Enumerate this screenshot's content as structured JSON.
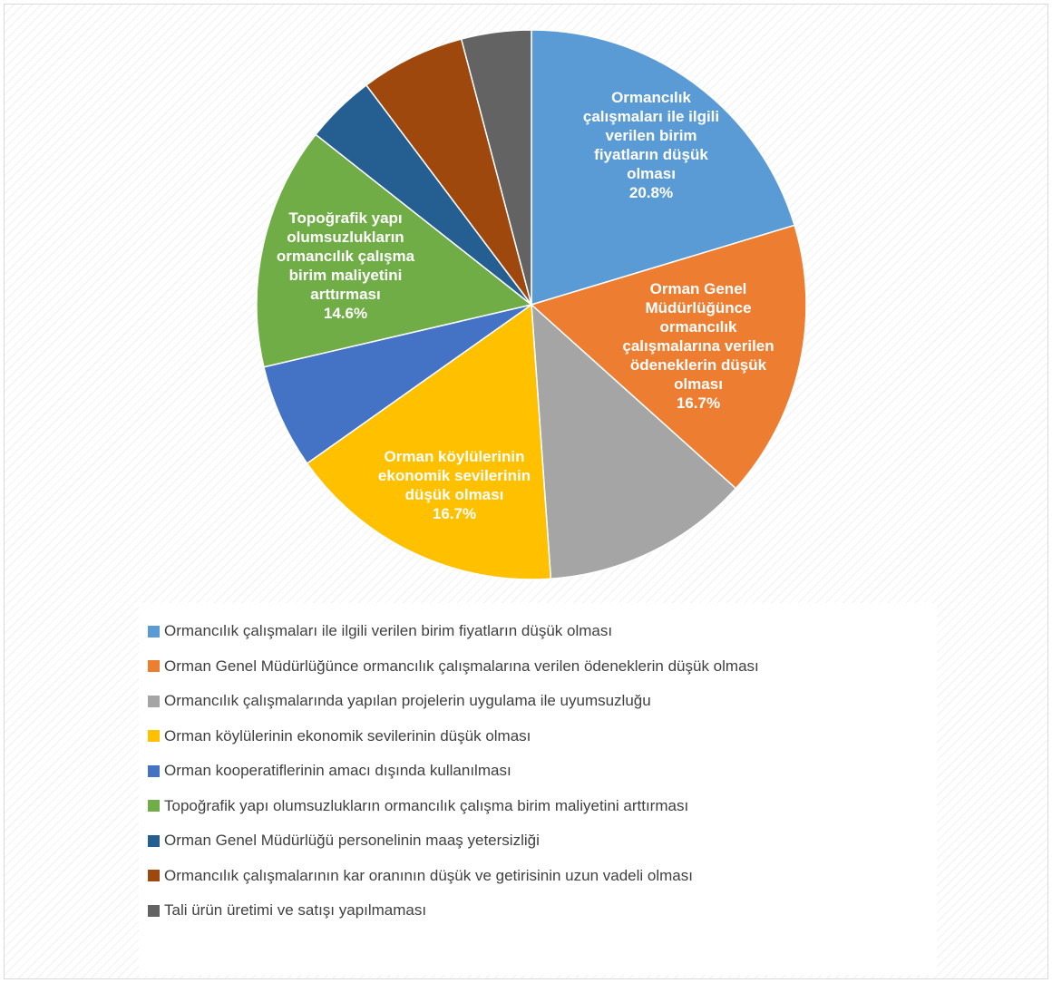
{
  "chart_data": {
    "type": "pie",
    "title": "",
    "legend_position": "bottom",
    "slices": [
      {
        "label": "Ormancılık çalışmaları ile ilgili verilen birim fiyatların düşük olması",
        "value": 20.8,
        "value_label": "20.8%",
        "color": "#5B9BD5",
        "slice_lines": [
          "Ormancılık",
          "çalışmaları ile ilgili",
          "verilen birim",
          "fiyatların düşük",
          "olması"
        ]
      },
      {
        "label": "Orman Genel Müdürlüğünce ormancılık çalışmalarına verilen ödeneklerin düşük olması",
        "value": 16.7,
        "value_label": "16.7%",
        "color": "#ED7D31",
        "slice_lines": [
          "Orman Genel",
          "Müdürlüğünce",
          "ormancılık",
          "çalışmalarına verilen",
          "ödeneklerin düşük",
          "olması"
        ]
      },
      {
        "label": "Ormancılık çalışmalarında yapılan projelerin uygulama ile uyumsuzluğu",
        "value": 12.5,
        "value_label": "",
        "color": "#A5A5A5",
        "slice_lines": []
      },
      {
        "label": "Orman köylülerinin ekonomik sevilerinin düşük olması",
        "value": 16.7,
        "value_label": "16.7%",
        "color": "#FFC000",
        "slice_lines": [
          "Orman köylülerinin",
          "ekonomik sevilerinin",
          "düşük olması"
        ]
      },
      {
        "label": "Orman kooperatiflerinin amacı dışında kullanılması",
        "value": 6.3,
        "value_label": "",
        "color": "#4472C4",
        "slice_lines": []
      },
      {
        "label": "Topoğrafik yapı olumsuzlukların ormancılık çalışma birim maliyetini arttırması",
        "value": 14.6,
        "value_label": "14.6%",
        "color": "#70AD47",
        "slice_lines": [
          "Topoğrafik yapı",
          "olumsuzlukların",
          "ormancılık çalışma",
          "birim maliyetini",
          "arttırması"
        ]
      },
      {
        "label": "Orman Genel Müdürlüğü personelinin maaş yetersizliği",
        "value": 4.2,
        "value_label": "",
        "color": "#255E91",
        "slice_lines": []
      },
      {
        "label": "Ormancılık çalışmalarının kar oranının düşük ve getirisinin uzun vadeli olması",
        "value": 6.3,
        "value_label": "",
        "color": "#9E480E",
        "slice_lines": []
      },
      {
        "label": "Tali ürün üretimi ve satışı yapılmaması",
        "value": 4.2,
        "value_label": "",
        "color": "#636363",
        "slice_lines": []
      }
    ]
  }
}
